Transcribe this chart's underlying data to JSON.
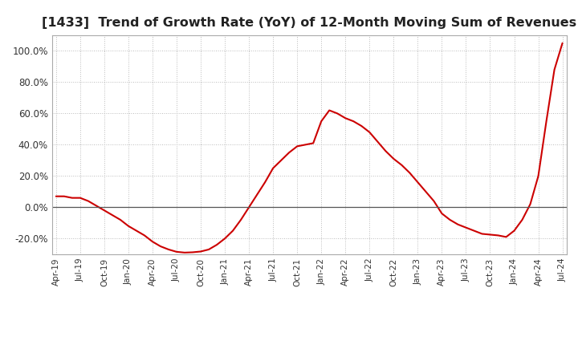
{
  "title": "[1433]  Trend of Growth Rate (YoY) of 12-Month Moving Sum of Revenues",
  "title_fontsize": 11.5,
  "line_color": "#cc0000",
  "background_color": "#ffffff",
  "plot_background_color": "#ffffff",
  "grid_color": "#bbbbbb",
  "zero_line_color": "#555555",
  "ylim": [
    -0.3,
    1.1
  ],
  "yticks": [
    -0.2,
    0.0,
    0.2,
    0.4,
    0.6,
    0.8,
    1.0
  ],
  "values": [
    0.07,
    0.07,
    0.06,
    0.06,
    0.04,
    0.01,
    -0.02,
    -0.05,
    -0.08,
    -0.12,
    -0.15,
    -0.18,
    -0.22,
    -0.25,
    -0.27,
    -0.285,
    -0.29,
    -0.288,
    -0.283,
    -0.27,
    -0.24,
    -0.2,
    -0.15,
    -0.08,
    0.0,
    0.08,
    0.16,
    0.25,
    0.3,
    0.35,
    0.39,
    0.4,
    0.41,
    0.55,
    0.62,
    0.6,
    0.57,
    0.55,
    0.52,
    0.48,
    0.42,
    0.36,
    0.31,
    0.27,
    0.22,
    0.16,
    0.1,
    0.04,
    -0.04,
    -0.08,
    -0.11,
    -0.13,
    -0.15,
    -0.17,
    -0.175,
    -0.18,
    -0.19,
    -0.15,
    -0.08,
    0.02,
    0.2,
    0.55,
    0.88,
    1.05
  ],
  "xtick_labels": [
    "Apr-19",
    "Jul-19",
    "Oct-19",
    "Jan-20",
    "Apr-20",
    "Jul-20",
    "Oct-20",
    "Jan-21",
    "Apr-21",
    "Jul-21",
    "Oct-21",
    "Jan-22",
    "Apr-22",
    "Jul-22",
    "Oct-22",
    "Jan-23",
    "Apr-23",
    "Jul-23",
    "Oct-23",
    "Jan-24",
    "Apr-24",
    "Jul-24"
  ],
  "xtick_positions_months": [
    0,
    3,
    6,
    9,
    12,
    15,
    18,
    21,
    24,
    27,
    30,
    33,
    36,
    39,
    42,
    45,
    48,
    51,
    54,
    57,
    60,
    63
  ]
}
